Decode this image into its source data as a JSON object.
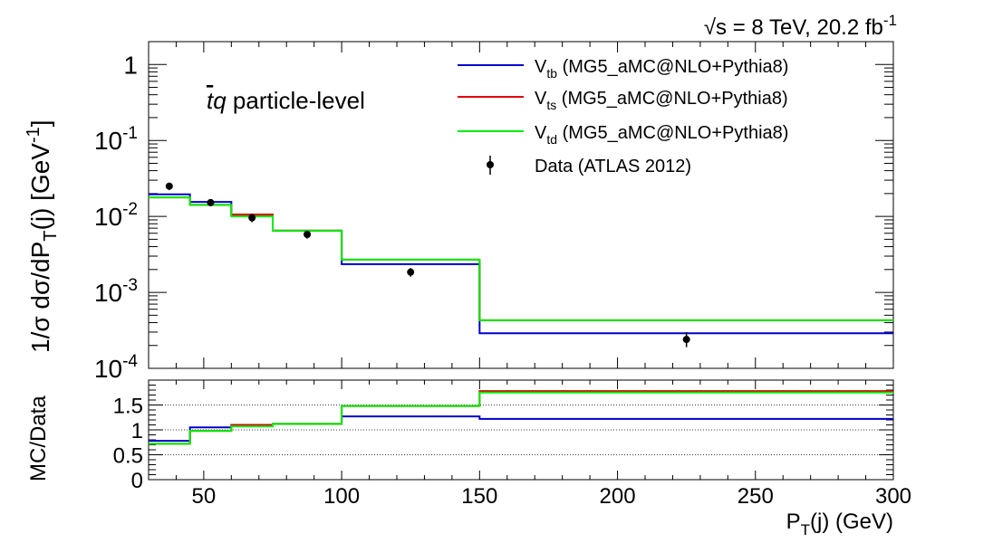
{
  "header": {
    "sqrt_s_symbol": "√s",
    "energy_lumi_prefix": " = 8 TeV, 20.2 fb",
    "energy_lumi_exp": "-1"
  },
  "annotation": {
    "process_bar": "t",
    "process_q": "q",
    "process_rest": " particle-level"
  },
  "chart_data": [
    {
      "type": "line",
      "panel": "top",
      "ylabel_main": "1/σ dσ/dP",
      "ylabel_sub": "T",
      "ylabel_mid": "(j)  [GeV",
      "ylabel_sup": "-1",
      "ylabel_end": "]",
      "yscale": "log",
      "ylim": [
        0.0001,
        2
      ],
      "xlim": [
        30,
        300
      ],
      "bin_edges": [
        30,
        45,
        60,
        75,
        100,
        150,
        300
      ],
      "yticks": [
        {
          "base": "10",
          "exp": "-4",
          "value": 0.0001
        },
        {
          "base": "10",
          "exp": "-3",
          "value": 0.001
        },
        {
          "base": "10",
          "exp": "-2",
          "value": 0.01
        },
        {
          "base": "10",
          "exp": "-1",
          "value": 0.1
        },
        {
          "base": "1",
          "exp": "",
          "value": 1
        }
      ],
      "series": [
        {
          "name_v": "V",
          "name_sub": "tb",
          "name_rest": " (MG5_aMC@NLO+Pythia8)",
          "color": "#0000cc",
          "values": [
            0.0195,
            0.0155,
            0.0105,
            0.0065,
            0.00235,
            0.00029
          ]
        },
        {
          "name_v": "V",
          "name_sub": "ts",
          "name_rest": " (MG5_aMC@NLO+Pythia8)",
          "color": "#dd0000",
          "values": [
            0.0178,
            0.0142,
            0.0106,
            0.0065,
            0.0027,
            0.00043
          ]
        },
        {
          "name_v": "V",
          "name_sub": "td",
          "name_rest": " (MG5_aMC@NLO+Pythia8)",
          "color": "#00ee00",
          "values": [
            0.0178,
            0.0142,
            0.01,
            0.0065,
            0.0027,
            0.00043
          ]
        }
      ],
      "data": {
        "name": "Data (ATLAS 2012)",
        "x": [
          37.5,
          52.5,
          67.5,
          87.5,
          125,
          225
        ],
        "y": [
          0.025,
          0.0152,
          0.0096,
          0.0058,
          0.00185,
          0.00024
        ],
        "err_up": [
          0.0028,
          0.0015,
          0.0012,
          0.0007,
          0.00024,
          6e-05
        ],
        "err_down": [
          0.0028,
          0.0015,
          0.0012,
          0.0007,
          0.00024,
          5e-05
        ]
      }
    },
    {
      "type": "line",
      "panel": "ratio",
      "ylabel": "MC/Data",
      "xlabel_main": "P",
      "xlabel_sub": "T",
      "xlabel_rest": "(j) (GeV)",
      "ylim": [
        0,
        2
      ],
      "xlim": [
        30,
        300
      ],
      "bin_edges": [
        30,
        45,
        60,
        75,
        100,
        150,
        300
      ],
      "yticks": [
        "0",
        "0.5",
        "1",
        "1.5"
      ],
      "ytick_values": [
        0,
        0.5,
        1,
        1.5
      ],
      "xticks": [
        "50",
        "100",
        "150",
        "200",
        "250",
        "300"
      ],
      "xtick_values": [
        50,
        100,
        150,
        200,
        250,
        300
      ],
      "grid_lines": [
        0.5,
        1,
        1.5
      ],
      "series": [
        {
          "name": "tb",
          "color": "#0000cc",
          "values": [
            0.78,
            1.05,
            1.1,
            1.12,
            1.27,
            1.22
          ]
        },
        {
          "name": "ts",
          "color": "#dd0000",
          "values": [
            0.72,
            0.98,
            1.1,
            1.12,
            1.48,
            1.78
          ]
        },
        {
          "name": "td",
          "color": "#00ee00",
          "values": [
            0.72,
            0.98,
            1.07,
            1.12,
            1.48,
            1.75
          ]
        }
      ]
    }
  ]
}
